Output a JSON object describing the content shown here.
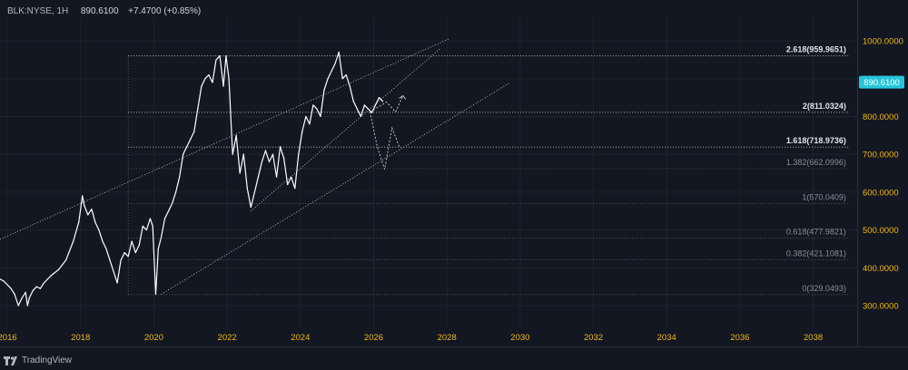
{
  "header": {
    "symbol": "BLK:NYSE, 1H",
    "price": "890.6100",
    "change": "+7.4700 (+0.85%)"
  },
  "footer": {
    "brand": "TradingView",
    "logo_icon": "tradingview-logo-icon"
  },
  "colors": {
    "background": "#131722",
    "price_line": "#ffffff",
    "axis_text": "#f0b90b",
    "grid": "#1e222d",
    "badge": "#26c6da"
  },
  "chart_data": {
    "type": "line",
    "title": "",
    "xlabel": "",
    "ylabel": "",
    "xlim": [
      2015.8,
      2039.2
    ],
    "ylim": [
      240,
      1060
    ],
    "x_ticks": [
      2016,
      2018,
      2020,
      2022,
      2024,
      2026,
      2028,
      2030,
      2032,
      2034,
      2036,
      2038
    ],
    "x_tick_labels": [
      "2016",
      "2018",
      "2020",
      "2022",
      "2024",
      "2026",
      "2028",
      "2030",
      "2032",
      "2034",
      "2036",
      "2038"
    ],
    "y_ticks": [
      300,
      400,
      500,
      600,
      700,
      800,
      900,
      1000
    ],
    "y_tick_labels": [
      "300.0000",
      "400.0000",
      "500.0000",
      "600.0000",
      "700.0000",
      "800.0000",
      "900.0000",
      "1000.0000"
    ],
    "grid": true,
    "current_price": {
      "value": 890.61,
      "label": "890.6100"
    },
    "price_series": {
      "x": [
        2015.8,
        2015.9,
        2016.0,
        2016.1,
        2016.2,
        2016.3,
        2016.4,
        2016.5,
        2016.55,
        2016.6,
        2016.7,
        2016.8,
        2016.9,
        2017.0,
        2017.2,
        2017.4,
        2017.6,
        2017.8,
        2017.95,
        2018.05,
        2018.1,
        2018.2,
        2018.3,
        2018.4,
        2018.5,
        2018.6,
        2018.7,
        2018.8,
        2018.9,
        2019.0,
        2019.1,
        2019.2,
        2019.3,
        2019.4,
        2019.5,
        2019.6,
        2019.7,
        2019.8,
        2019.9,
        2019.97,
        2020.05,
        2020.12,
        2020.2,
        2020.3,
        2020.4,
        2020.5,
        2020.6,
        2020.7,
        2020.8,
        2020.9,
        2021.0,
        2021.1,
        2021.2,
        2021.3,
        2021.4,
        2021.5,
        2021.6,
        2021.7,
        2021.8,
        2021.9,
        2021.97,
        2022.05,
        2022.15,
        2022.25,
        2022.35,
        2022.45,
        2022.55,
        2022.65,
        2022.75,
        2022.85,
        2022.95,
        2023.05,
        2023.15,
        2023.25,
        2023.35,
        2023.45,
        2023.55,
        2023.65,
        2023.75,
        2023.85,
        2023.95,
        2024.05,
        2024.15,
        2024.25,
        2024.35,
        2024.45,
        2024.55,
        2024.65,
        2024.75,
        2024.85,
        2024.95,
        2025.05,
        2025.15,
        2025.25,
        2025.35,
        2025.45,
        2025.55,
        2025.65,
        2025.75,
        2025.85,
        2025.95,
        2026.05,
        2026.15,
        2026.25
      ],
      "y": [
        370,
        365,
        355,
        345,
        330,
        300,
        320,
        335,
        300,
        320,
        340,
        350,
        345,
        360,
        380,
        395,
        420,
        470,
        520,
        590,
        565,
        540,
        555,
        520,
        500,
        470,
        450,
        420,
        390,
        360,
        420,
        440,
        430,
        470,
        440,
        460,
        510,
        500,
        530,
        510,
        330,
        450,
        480,
        530,
        550,
        570,
        600,
        640,
        700,
        720,
        740,
        760,
        820,
        880,
        900,
        910,
        890,
        950,
        960,
        880,
        960,
        900,
        700,
        750,
        650,
        700,
        610,
        560,
        600,
        640,
        680,
        710,
        680,
        700,
        640,
        720,
        690,
        620,
        640,
        610,
        700,
        760,
        800,
        780,
        830,
        820,
        800,
        870,
        900,
        920,
        940,
        970,
        900,
        910,
        880,
        840,
        820,
        800,
        830,
        820,
        810,
        830,
        850,
        840
      ]
    },
    "projection_paths": [
      {
        "x": [
          2025.9,
          2026.35,
          2026.6,
          2026.8
        ],
        "y": [
          812,
          838,
          812,
          855
        ]
      },
      {
        "x": [
          2025.9,
          2026.1,
          2026.3,
          2026.5,
          2026.7
        ],
        "y": [
          812,
          720,
          660,
          770,
          720
        ]
      }
    ],
    "trend_lines": [
      {
        "x": [
          2015.8,
          2028.05
        ],
        "y": [
          475,
          1005
        ]
      },
      {
        "x": [
          2022.65,
          2027.8
        ],
        "y": [
          550,
          978
        ]
      },
      {
        "x": [
          2020.2,
          2029.7
        ],
        "y": [
          330,
          888
        ]
      }
    ],
    "fib_levels": [
      {
        "label": "0(329.0493)",
        "value": 329.0493,
        "strong": false
      },
      {
        "label": "0.382(421.1081)",
        "value": 421.1081,
        "strong": false
      },
      {
        "label": "0.618(477.9821)",
        "value": 477.9821,
        "strong": false
      },
      {
        "label": "1(570.0409)",
        "value": 570.0409,
        "strong": false
      },
      {
        "label": "1.382(662.0996)",
        "value": 662.0996,
        "strong": false
      },
      {
        "label": "1.618(718.9736)",
        "value": 718.9736,
        "strong": true
      },
      {
        "label": "2(811.0324)",
        "value": 811.0324,
        "strong": true
      },
      {
        "label": "2.618(959.9651)",
        "value": 959.9651,
        "strong": true
      }
    ],
    "fib_x_range": [
      2019.3,
      2039.0
    ]
  }
}
